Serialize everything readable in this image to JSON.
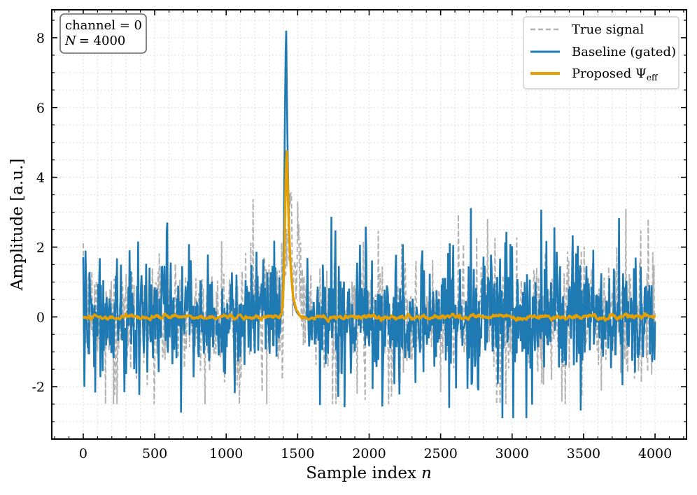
{
  "chart_data": {
    "type": "line",
    "title": "",
    "xlabel_text": "Sample index",
    "xlabel_var": "n",
    "ylabel": "Amplitude [a.u.]",
    "xlim": [
      -220,
      4220
    ],
    "ylim": [
      -3.5,
      8.8
    ],
    "xticks": [
      0,
      500,
      1000,
      1500,
      2000,
      2500,
      3000,
      3500,
      4000
    ],
    "yticks": [
      -2,
      0,
      2,
      4,
      6,
      8
    ],
    "ytick_labels": [
      "-2",
      "0",
      "2",
      "4",
      "6",
      "8"
    ],
    "grid": true,
    "n_samples": 4000,
    "annotation": {
      "line1": "channel = 0",
      "line2_var": "N",
      "line2_value": "= 4000"
    },
    "legend": {
      "position": "top-right",
      "entries": [
        {
          "key": "true",
          "label": "True signal",
          "style": "dashed"
        },
        {
          "key": "baseline",
          "label": "Baseline (gated)",
          "style": "solid"
        },
        {
          "key": "proposed",
          "label_main": "Proposed Ψ",
          "label_sub": "eff",
          "style": "solid"
        }
      ]
    },
    "series": [
      {
        "name": "True signal",
        "color": "#b3b3b3",
        "noise_amplitude": 0.95,
        "spike": {
          "center": 1450,
          "peak": 3.5,
          "width": 40
        },
        "range_min": -2.5,
        "range_max": 3.55
      },
      {
        "name": "Baseline (gated)",
        "color": "#1f7ab3",
        "noise_amplitude": 0.95,
        "spike": {
          "center": 1420,
          "peak": 8.2,
          "width": 18
        },
        "gated_zero_range": [
          1380,
          1560
        ],
        "range_min": -2.9,
        "range_max": 8.2
      },
      {
        "name": "Proposed Ψ_eff",
        "color": "#e69f00",
        "noise_amplitude": 0.06,
        "spike": {
          "center": 1425,
          "peak": 4.75,
          "width": 22
        },
        "range_min": -0.25,
        "range_max": 4.75
      }
    ]
  }
}
